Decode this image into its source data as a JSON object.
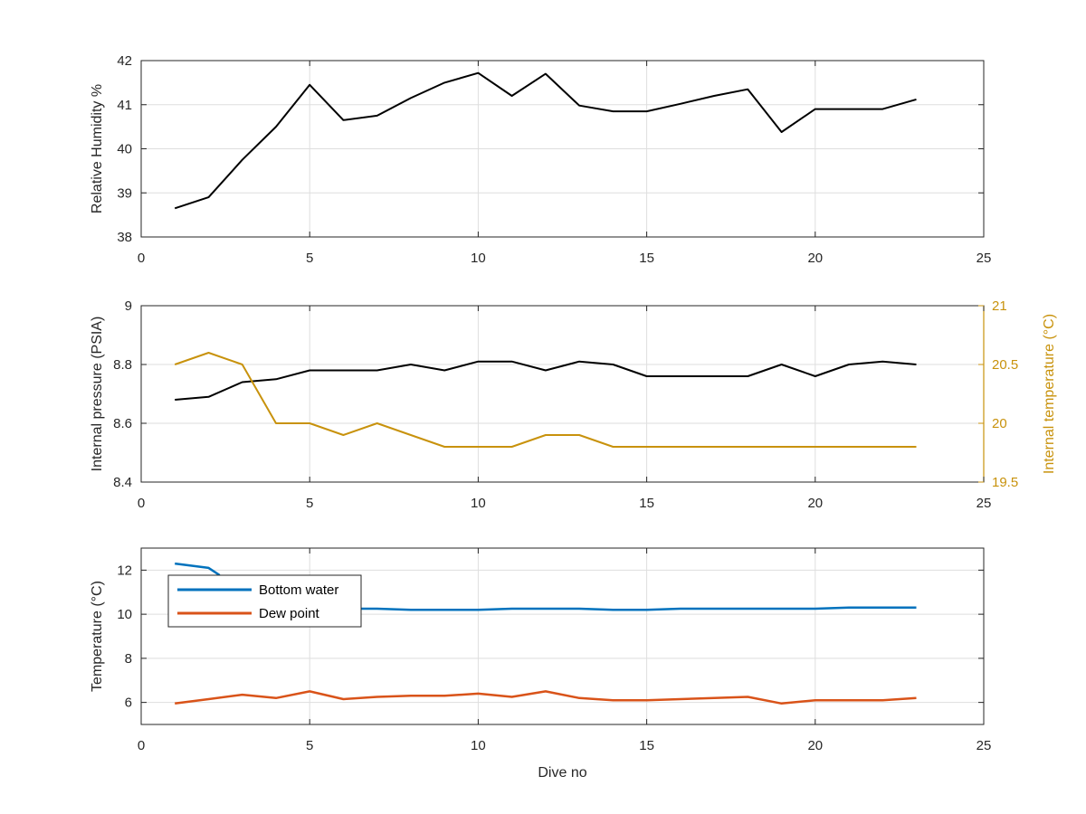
{
  "colors": {
    "black_series": "#000000",
    "temp_series": "#C8920C",
    "bottom_water": "#0072BD",
    "dew_point": "#D95319",
    "grid": "#DEDEDE",
    "axis": "#262626"
  },
  "chart_data": [
    {
      "type": "line",
      "id": "humidity",
      "xlabel": "",
      "ylabel": "Relative Humidity %",
      "xlim": [
        0,
        25
      ],
      "ylim": [
        38,
        42
      ],
      "xticks": [
        0,
        5,
        10,
        15,
        20,
        25
      ],
      "yticks": [
        38,
        39,
        40,
        41,
        42
      ],
      "grid": true,
      "series": [
        {
          "x": [
            1,
            2,
            3,
            4,
            5,
            6,
            7,
            8,
            9,
            10,
            11,
            12,
            13,
            14,
            15,
            16,
            17,
            18,
            19,
            20,
            21,
            22,
            23
          ],
          "values": [
            38.65,
            38.9,
            39.75,
            40.5,
            41.45,
            40.65,
            40.75,
            41.15,
            41.5,
            41.72,
            41.2,
            41.7,
            40.98,
            40.85,
            40.85,
            41.02,
            41.2,
            41.35,
            40.38,
            40.9,
            40.9,
            40.9,
            41.12
          ]
        }
      ]
    },
    {
      "type": "line",
      "id": "pressure",
      "xlabel": "",
      "ylabel": "Internal pressure (PSIA)",
      "y2label": "Internal temperature (°C)",
      "xlim": [
        0,
        25
      ],
      "ylim": [
        8.4,
        9
      ],
      "y2lim": [
        19.5,
        21
      ],
      "xticks": [
        0,
        5,
        10,
        15,
        20,
        25
      ],
      "yticks": [
        8.4,
        8.6,
        8.8,
        9
      ],
      "ytick_labels": [
        "8.4",
        "8.6",
        "8.8",
        "9"
      ],
      "y2ticks": [
        19.5,
        20,
        20.5,
        21
      ],
      "y2tick_labels": [
        "19.5",
        "20",
        "20.5",
        "21"
      ],
      "grid": true,
      "series": [
        {
          "axis": "left",
          "x": [
            1,
            2,
            3,
            4,
            5,
            6,
            7,
            8,
            9,
            10,
            11,
            12,
            13,
            14,
            15,
            16,
            17,
            18,
            19,
            20,
            21,
            22,
            23
          ],
          "values": [
            8.68,
            8.69,
            8.74,
            8.75,
            8.78,
            8.78,
            8.78,
            8.8,
            8.78,
            8.81,
            8.81,
            8.78,
            8.81,
            8.8,
            8.76,
            8.76,
            8.76,
            8.76,
            8.8,
            8.76,
            8.8,
            8.81,
            8.8
          ]
        },
        {
          "axis": "right",
          "x": [
            1,
            2,
            3,
            4,
            5,
            6,
            7,
            8,
            9,
            10,
            11,
            12,
            13,
            14,
            15,
            16,
            17,
            18,
            19,
            20,
            21,
            22,
            23
          ],
          "values": [
            20.5,
            20.6,
            20.5,
            20.0,
            20.0,
            19.9,
            20.0,
            19.9,
            19.8,
            19.8,
            19.8,
            19.9,
            19.9,
            19.8,
            19.8,
            19.8,
            19.8,
            19.8,
            19.8,
            19.8,
            19.8,
            19.8,
            19.8
          ]
        }
      ]
    },
    {
      "type": "line",
      "id": "temperature",
      "xlabel": "Dive no",
      "ylabel": "Temperature (°C)",
      "xlim": [
        0,
        25
      ],
      "ylim": [
        5,
        13
      ],
      "xticks": [
        0,
        5,
        10,
        15,
        20,
        25
      ],
      "yticks": [
        6,
        8,
        10,
        12
      ],
      "grid": true,
      "legend_position": "top-left",
      "series": [
        {
          "name": "Bottom water",
          "x": [
            1,
            1.5,
            2,
            2.3,
            2.6,
            3,
            4,
            5,
            6,
            7,
            8,
            9,
            10,
            11,
            12,
            13,
            14,
            15,
            16,
            17,
            18,
            19,
            20,
            21,
            22,
            23
          ],
          "values": [
            12.3,
            12.2,
            12.1,
            11.8,
            11.2,
            10.7,
            10.3,
            10.25,
            10.25,
            10.25,
            10.2,
            10.2,
            10.2,
            10.25,
            10.25,
            10.25,
            10.2,
            10.2,
            10.25,
            10.25,
            10.25,
            10.25,
            10.25,
            10.3,
            10.3,
            10.3
          ]
        },
        {
          "name": "Dew point",
          "x": [
            1,
            2,
            3,
            4,
            5,
            6,
            7,
            8,
            9,
            10,
            11,
            12,
            13,
            14,
            15,
            16,
            17,
            18,
            19,
            20,
            21,
            22,
            23
          ],
          "values": [
            5.95,
            6.15,
            6.35,
            6.2,
            6.5,
            6.15,
            6.25,
            6.3,
            6.3,
            6.4,
            6.25,
            6.5,
            6.2,
            6.1,
            6.1,
            6.15,
            6.2,
            6.25,
            5.95,
            6.1,
            6.1,
            6.1,
            6.2
          ]
        }
      ]
    }
  ]
}
